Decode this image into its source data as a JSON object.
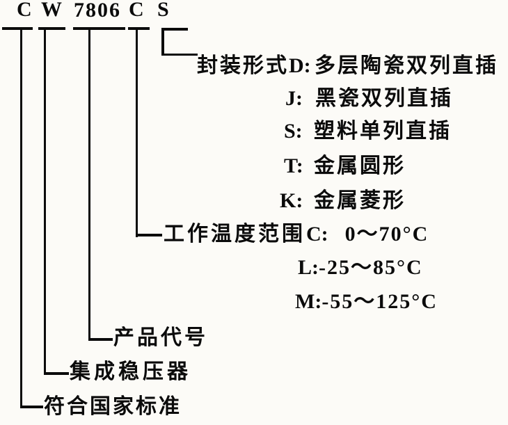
{
  "colors": {
    "ink": "#0b0b0b",
    "paper": "#fcfbf7"
  },
  "code": {
    "seg_standard": "C",
    "seg_type": "W",
    "seg_number": "7806",
    "seg_temp": "C",
    "seg_package": "S"
  },
  "package": {
    "label": "封装形式",
    "options": [
      {
        "key": "D:",
        "value": "多层陶瓷双列直插"
      },
      {
        "key": "J:",
        "value": "黑瓷双列直插"
      },
      {
        "key": "S:",
        "value": "塑料单列直插"
      },
      {
        "key": "T:",
        "value": "金属圆形"
      },
      {
        "key": "K:",
        "value": "金属菱形"
      }
    ]
  },
  "temperature": {
    "label": "工作温度范围",
    "options": [
      {
        "key": "C:",
        "value": "0～70°C"
      },
      {
        "key": "L:",
        "value": "-25～85°C"
      },
      {
        "key": "M:",
        "value": "-55～125°C"
      }
    ]
  },
  "labels": {
    "product_code": "产品代号",
    "regulator": "集成稳压器",
    "standard": "符合国家标准"
  }
}
